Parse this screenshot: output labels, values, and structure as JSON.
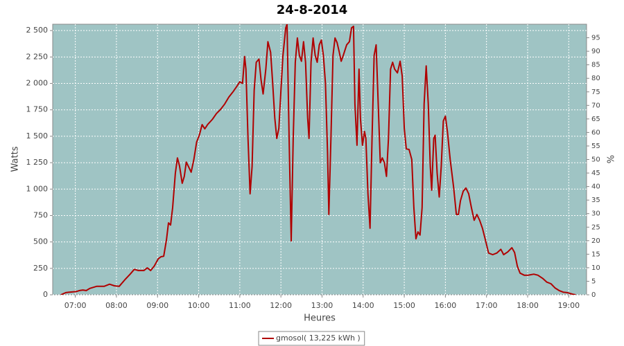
{
  "chart_data": {
    "type": "line",
    "title": "24-8-2014",
    "x_label": "Heures",
    "y_label": "Watts",
    "y2_label": "%",
    "x": [
      "06:39",
      "06:46",
      "06:51",
      "07:01",
      "07:06",
      "07:11",
      "07:16",
      "07:21",
      "07:31",
      "07:42",
      "07:50",
      "07:57",
      "08:04",
      "08:12",
      "08:20",
      "08:26",
      "08:32",
      "08:40",
      "08:45",
      "08:50",
      "08:55",
      "09:01",
      "09:05",
      "09:09",
      "09:13",
      "09:16",
      "09:19",
      "09:22",
      "09:26",
      "09:29",
      "09:32",
      "09:36",
      "09:39",
      "09:42",
      "09:45",
      "09:49",
      "09:53",
      "09:57",
      "10:01",
      "10:05",
      "10:09",
      "10:13",
      "10:20",
      "10:26",
      "10:32",
      "10:38",
      "10:44",
      "10:50",
      "10:56",
      "11:00",
      "11:04",
      "11:07",
      "11:09",
      "11:12",
      "11:15",
      "11:18",
      "11:21",
      "11:24",
      "11:28",
      "11:31",
      "11:34",
      "11:38",
      "11:41",
      "11:45",
      "11:48",
      "11:51",
      "11:54",
      "11:57",
      "12:00",
      "12:03",
      "12:07",
      "12:09",
      "12:12",
      "12:15",
      "12:18",
      "12:21",
      "12:24",
      "12:27",
      "12:30",
      "12:33",
      "12:36",
      "12:39",
      "12:41",
      "12:44",
      "12:47",
      "12:50",
      "12:53",
      "12:56",
      "12:59",
      "13:02",
      "13:05",
      "13:08",
      "13:10",
      "13:13",
      "13:16",
      "13:19",
      "13:22",
      "13:25",
      "13:28",
      "13:31",
      "13:36",
      "13:40",
      "13:43",
      "13:46",
      "13:48",
      "13:51",
      "13:54",
      "13:56",
      "13:59",
      "14:02",
      "14:04",
      "14:07",
      "14:10",
      "14:13",
      "14:16",
      "14:19",
      "14:22",
      "14:25",
      "14:28",
      "14:31",
      "14:34",
      "14:37",
      "14:40",
      "14:43",
      "14:46",
      "14:50",
      "14:54",
      "14:57",
      "15:00",
      "15:03",
      "15:07",
      "15:11",
      "15:14",
      "15:17",
      "15:20",
      "15:23",
      "15:26",
      "15:29",
      "15:32",
      "15:35",
      "15:38",
      "15:40",
      "15:43",
      "15:45",
      "15:48",
      "15:51",
      "15:54",
      "15:57",
      "16:00",
      "16:03",
      "16:07",
      "16:12",
      "16:16",
      "16:19",
      "16:22",
      "16:26",
      "16:30",
      "16:34",
      "16:38",
      "16:42",
      "16:46",
      "16:50",
      "16:54",
      "16:58",
      "17:03",
      "17:09",
      "17:15",
      "17:21",
      "17:25",
      "17:31",
      "17:37",
      "17:41",
      "17:45",
      "17:49",
      "17:55",
      "18:01",
      "18:09",
      "18:15",
      "18:22",
      "18:28",
      "18:34",
      "18:40",
      "18:46",
      "18:52",
      "18:58",
      "19:06",
      "19:10"
    ],
    "series": [
      {
        "name": "gmosol( 13,225 kWh )",
        "color": "#b00000",
        "values": [
          0,
          20,
          25,
          30,
          40,
          45,
          40,
          60,
          80,
          80,
          100,
          85,
          80,
          140,
          195,
          240,
          230,
          230,
          255,
          230,
          270,
          340,
          360,
          365,
          520,
          680,
          660,
          825,
          1150,
          1295,
          1220,
          1055,
          1120,
          1255,
          1215,
          1160,
          1280,
          1445,
          1510,
          1610,
          1570,
          1610,
          1660,
          1715,
          1755,
          1805,
          1870,
          1920,
          1975,
          2015,
          2000,
          2255,
          2135,
          1480,
          955,
          1215,
          1935,
          2200,
          2230,
          2035,
          1900,
          2135,
          2395,
          2295,
          2000,
          1675,
          1480,
          1575,
          1935,
          2265,
          2525,
          2560,
          1480,
          510,
          1480,
          2200,
          2430,
          2265,
          2210,
          2395,
          2200,
          1675,
          1480,
          2200,
          2430,
          2265,
          2200,
          2365,
          2410,
          2265,
          2000,
          1350,
          760,
          1480,
          2265,
          2430,
          2385,
          2300,
          2210,
          2265,
          2365,
          2395,
          2525,
          2540,
          1805,
          1415,
          2135,
          1675,
          1415,
          1545,
          1480,
          955,
          630,
          1480,
          2265,
          2365,
          1805,
          1250,
          1295,
          1250,
          1120,
          1480,
          2135,
          2200,
          2135,
          2100,
          2210,
          2070,
          1575,
          1380,
          1375,
          1280,
          825,
          530,
          595,
          565,
          825,
          1805,
          2165,
          1805,
          1215,
          990,
          1480,
          1510,
          1150,
          925,
          1215,
          1645,
          1690,
          1545,
          1280,
          1020,
          760,
          760,
          890,
          980,
          1010,
          955,
          825,
          705,
          760,
          705,
          630,
          530,
          395,
          380,
          395,
          430,
          380,
          405,
          445,
          400,
          270,
          205,
          185,
          185,
          195,
          185,
          155,
          120,
          105,
          65,
          40,
          25,
          20,
          5,
          0
        ]
      }
    ],
    "xlim": [
      "06:27",
      "19:26"
    ],
    "xticks": [
      "07:00",
      "08:00",
      "09:00",
      "10:00",
      "11:00",
      "12:00",
      "13:00",
      "14:00",
      "15:00",
      "16:00",
      "17:00",
      "18:00",
      "19:00"
    ],
    "ylim": [
      0,
      2560
    ],
    "yticks": [
      0,
      250,
      500,
      750,
      {
        "value": 1000,
        "label": "1 000"
      },
      {
        "value": 1250,
        "label": "1 250"
      },
      {
        "value": 1500,
        "label": "1 500"
      },
      {
        "value": 1750,
        "label": "1 750"
      },
      {
        "value": 2000,
        "label": "2 000"
      },
      {
        "value": 2250,
        "label": "2 250"
      },
      {
        "value": 2500,
        "label": "2 500"
      }
    ],
    "y2lim": [
      0,
      100
    ],
    "y2ticks": [
      0,
      5,
      10,
      15,
      20,
      25,
      30,
      35,
      40,
      45,
      50,
      55,
      60,
      65,
      70,
      75,
      80,
      85,
      90,
      95
    ],
    "grid": true,
    "legend": "bottom",
    "plot_background": "#9fc4c4"
  }
}
